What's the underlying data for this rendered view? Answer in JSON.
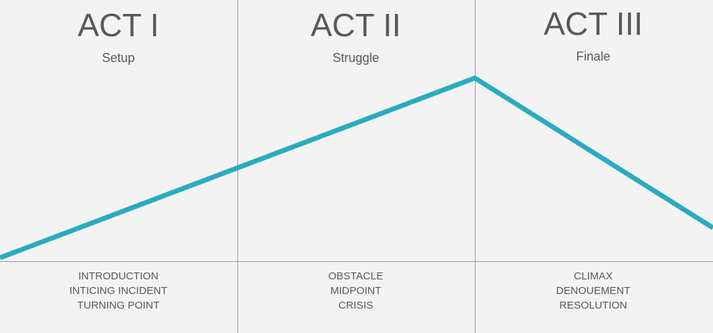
{
  "acts": [
    {
      "title": "ACT I",
      "subtitle": "Setup",
      "beats": [
        "INTRODUCTION",
        "INTICING INCIDENT",
        "TURNING POINT"
      ]
    },
    {
      "title": "ACT II",
      "subtitle": "Struggle",
      "beats": [
        "OBSTACLE",
        "MIDPOINT",
        "CRISIS"
      ]
    },
    {
      "title": "ACT III",
      "subtitle": "Finale",
      "beats": [
        "CLIMAX",
        "DENOUEMENT",
        "RESOLUTION"
      ]
    }
  ]
}
